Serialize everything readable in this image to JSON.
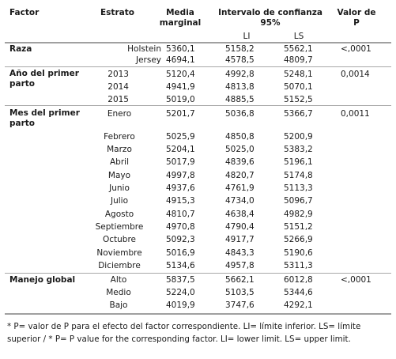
{
  "header": {
    "factor": "Factor",
    "estrato": "Estrato",
    "media": "Media marginal",
    "intervalo": "Intervalo de confianza 95%",
    "valor_p": "Valor de P",
    "li": "LI",
    "ls": "LS"
  },
  "groups": [
    {
      "factor": "Raza",
      "p": "<,0001",
      "rows": [
        {
          "estrato": "Holstein",
          "media": "5360,1",
          "li": "5158,2",
          "ls": "5562,1"
        },
        {
          "estrato": "Jersey",
          "media": "4694,1",
          "li": "4578,5",
          "ls": "4809,7"
        }
      ]
    },
    {
      "factor": "Año del primer parto",
      "p": "0,0014",
      "rows": [
        {
          "estrato": "2013",
          "media": "5120,4",
          "li": "4992,8",
          "ls": "5248,1"
        },
        {
          "estrato": "2014",
          "media": "4941,9",
          "li": "4813,8",
          "ls": "5070,1"
        },
        {
          "estrato": "2015",
          "media": "5019,0",
          "li": "4885,5",
          "ls": "5152,5"
        }
      ]
    },
    {
      "factor": "Mes del primer parto",
      "p": "0,0011",
      "rows": [
        {
          "estrato": "Enero",
          "media": "5201,7",
          "li": "5036,8",
          "ls": "5366,7"
        },
        {
          "estrato": "Febrero",
          "media": "5025,9",
          "li": "4850,8",
          "ls": "5200,9"
        },
        {
          "estrato": "Marzo",
          "media": "5204,1",
          "li": "5025,0",
          "ls": "5383,2"
        },
        {
          "estrato": "Abril",
          "media": "5017,9",
          "li": "4839,6",
          "ls": "5196,1"
        },
        {
          "estrato": "Mayo",
          "media": "4997,8",
          "li": "4820,7",
          "ls": "5174,8"
        },
        {
          "estrato": "Junio",
          "media": "4937,6",
          "li": "4761,9",
          "ls": "5113,3"
        },
        {
          "estrato": "Julio",
          "media": "4915,3",
          "li": "4734,0",
          "ls": "5096,7"
        },
        {
          "estrato": "Agosto",
          "media": "4810,7",
          "li": "4638,4",
          "ls": "4982,9"
        },
        {
          "estrato": "Septiembre",
          "media": "4970,8",
          "li": "4790,4",
          "ls": "5151,2"
        },
        {
          "estrato": "Octubre",
          "media": "5092,3",
          "li": "4917,7",
          "ls": "5266,9"
        },
        {
          "estrato": "Noviembre",
          "media": "5016,9",
          "li": "4843,3",
          "ls": "5190,6"
        },
        {
          "estrato": "Diciembre",
          "media": "5134,6",
          "li": "4957,8",
          "ls": "5311,3"
        }
      ]
    },
    {
      "factor": "Manejo global",
      "p": "<,0001",
      "rows": [
        {
          "estrato": "Alto",
          "media": "5837,5",
          "li": "5662,1",
          "ls": "6012,8"
        },
        {
          "estrato": "Medio",
          "media": "5224,0",
          "li": "5103,5",
          "ls": "5344,6"
        },
        {
          "estrato": "Bajo",
          "media": "4019,9",
          "li": "3747,6",
          "ls": "4292,1"
        }
      ]
    }
  ],
  "footnote": "* P= valor de P para el efecto del factor correspondiente. LI= límite inferior. LS= límite superior / * P= P value for the corresponding factor. LI= lower limit. LS= upper limit."
}
